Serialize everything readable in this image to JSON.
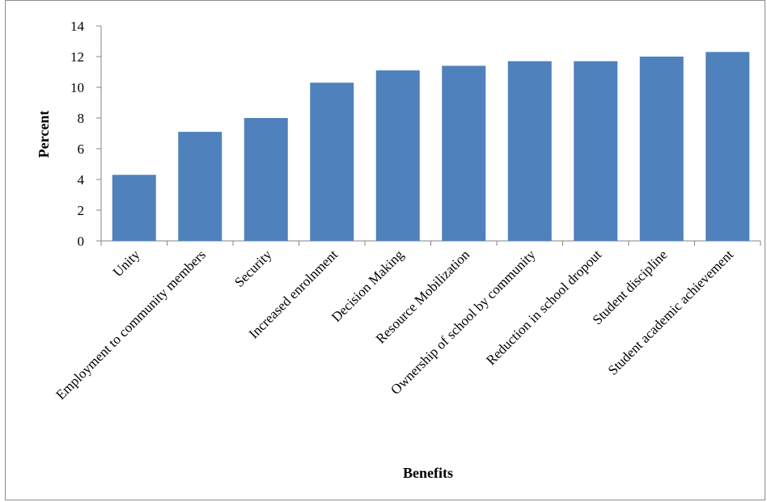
{
  "chart_data": {
    "type": "bar",
    "title": "",
    "xlabel": "Benefits",
    "ylabel": "Percent",
    "ylim": [
      0,
      14
    ],
    "yticks": [
      0,
      2,
      4,
      6,
      8,
      10,
      12,
      14
    ],
    "grid": false,
    "legend": "none",
    "bar_color": "#4f81bd",
    "categories": [
      "Unity",
      "Employment to community members",
      "Security",
      "Increased enrolnment",
      "Decision Making",
      "Resource Mobilization",
      "Ownership of school by community",
      "Reduction in school dropout",
      "Student discipline",
      "Student academic achievement"
    ],
    "values": [
      4.3,
      7.1,
      8.0,
      10.3,
      11.1,
      11.4,
      11.7,
      11.7,
      12.0,
      12.3
    ]
  }
}
